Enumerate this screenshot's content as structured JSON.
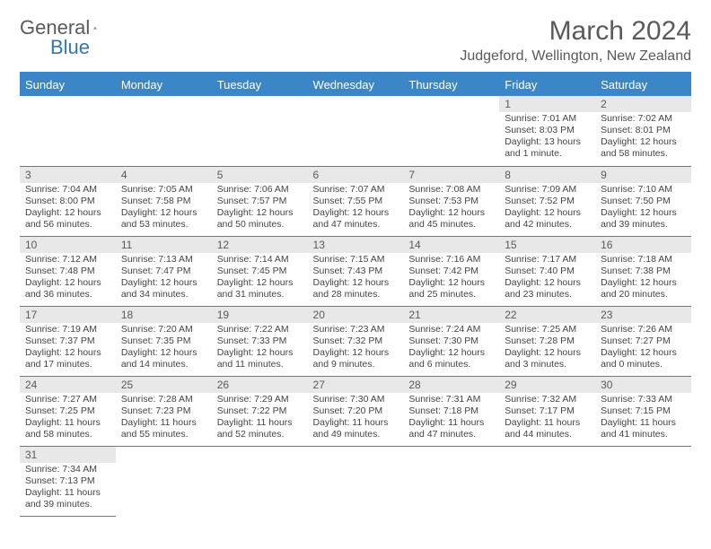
{
  "brand": {
    "word1": "General",
    "word2": "Blue"
  },
  "title": "March 2024",
  "location": "Judgeford, Wellington, New Zealand",
  "day_headers": [
    "Sunday",
    "Monday",
    "Tuesday",
    "Wednesday",
    "Thursday",
    "Friday",
    "Saturday"
  ],
  "colors": {
    "header_bg": "#3b86c6",
    "header_text": "#ffffff",
    "daynum_bg": "#e8e8e8",
    "border": "#3b86c6",
    "title_color": "#5a5a5a"
  },
  "weeks": [
    [
      null,
      null,
      null,
      null,
      null,
      {
        "n": "1",
        "sr": "Sunrise: 7:01 AM",
        "ss": "Sunset: 8:03 PM",
        "dl1": "Daylight: 13 hours",
        "dl2": "and 1 minute."
      },
      {
        "n": "2",
        "sr": "Sunrise: 7:02 AM",
        "ss": "Sunset: 8:01 PM",
        "dl1": "Daylight: 12 hours",
        "dl2": "and 58 minutes."
      }
    ],
    [
      {
        "n": "3",
        "sr": "Sunrise: 7:04 AM",
        "ss": "Sunset: 8:00 PM",
        "dl1": "Daylight: 12 hours",
        "dl2": "and 56 minutes."
      },
      {
        "n": "4",
        "sr": "Sunrise: 7:05 AM",
        "ss": "Sunset: 7:58 PM",
        "dl1": "Daylight: 12 hours",
        "dl2": "and 53 minutes."
      },
      {
        "n": "5",
        "sr": "Sunrise: 7:06 AM",
        "ss": "Sunset: 7:57 PM",
        "dl1": "Daylight: 12 hours",
        "dl2": "and 50 minutes."
      },
      {
        "n": "6",
        "sr": "Sunrise: 7:07 AM",
        "ss": "Sunset: 7:55 PM",
        "dl1": "Daylight: 12 hours",
        "dl2": "and 47 minutes."
      },
      {
        "n": "7",
        "sr": "Sunrise: 7:08 AM",
        "ss": "Sunset: 7:53 PM",
        "dl1": "Daylight: 12 hours",
        "dl2": "and 45 minutes."
      },
      {
        "n": "8",
        "sr": "Sunrise: 7:09 AM",
        "ss": "Sunset: 7:52 PM",
        "dl1": "Daylight: 12 hours",
        "dl2": "and 42 minutes."
      },
      {
        "n": "9",
        "sr": "Sunrise: 7:10 AM",
        "ss": "Sunset: 7:50 PM",
        "dl1": "Daylight: 12 hours",
        "dl2": "and 39 minutes."
      }
    ],
    [
      {
        "n": "10",
        "sr": "Sunrise: 7:12 AM",
        "ss": "Sunset: 7:48 PM",
        "dl1": "Daylight: 12 hours",
        "dl2": "and 36 minutes."
      },
      {
        "n": "11",
        "sr": "Sunrise: 7:13 AM",
        "ss": "Sunset: 7:47 PM",
        "dl1": "Daylight: 12 hours",
        "dl2": "and 34 minutes."
      },
      {
        "n": "12",
        "sr": "Sunrise: 7:14 AM",
        "ss": "Sunset: 7:45 PM",
        "dl1": "Daylight: 12 hours",
        "dl2": "and 31 minutes."
      },
      {
        "n": "13",
        "sr": "Sunrise: 7:15 AM",
        "ss": "Sunset: 7:43 PM",
        "dl1": "Daylight: 12 hours",
        "dl2": "and 28 minutes."
      },
      {
        "n": "14",
        "sr": "Sunrise: 7:16 AM",
        "ss": "Sunset: 7:42 PM",
        "dl1": "Daylight: 12 hours",
        "dl2": "and 25 minutes."
      },
      {
        "n": "15",
        "sr": "Sunrise: 7:17 AM",
        "ss": "Sunset: 7:40 PM",
        "dl1": "Daylight: 12 hours",
        "dl2": "and 23 minutes."
      },
      {
        "n": "16",
        "sr": "Sunrise: 7:18 AM",
        "ss": "Sunset: 7:38 PM",
        "dl1": "Daylight: 12 hours",
        "dl2": "and 20 minutes."
      }
    ],
    [
      {
        "n": "17",
        "sr": "Sunrise: 7:19 AM",
        "ss": "Sunset: 7:37 PM",
        "dl1": "Daylight: 12 hours",
        "dl2": "and 17 minutes."
      },
      {
        "n": "18",
        "sr": "Sunrise: 7:20 AM",
        "ss": "Sunset: 7:35 PM",
        "dl1": "Daylight: 12 hours",
        "dl2": "and 14 minutes."
      },
      {
        "n": "19",
        "sr": "Sunrise: 7:22 AM",
        "ss": "Sunset: 7:33 PM",
        "dl1": "Daylight: 12 hours",
        "dl2": "and 11 minutes."
      },
      {
        "n": "20",
        "sr": "Sunrise: 7:23 AM",
        "ss": "Sunset: 7:32 PM",
        "dl1": "Daylight: 12 hours",
        "dl2": "and 9 minutes."
      },
      {
        "n": "21",
        "sr": "Sunrise: 7:24 AM",
        "ss": "Sunset: 7:30 PM",
        "dl1": "Daylight: 12 hours",
        "dl2": "and 6 minutes."
      },
      {
        "n": "22",
        "sr": "Sunrise: 7:25 AM",
        "ss": "Sunset: 7:28 PM",
        "dl1": "Daylight: 12 hours",
        "dl2": "and 3 minutes."
      },
      {
        "n": "23",
        "sr": "Sunrise: 7:26 AM",
        "ss": "Sunset: 7:27 PM",
        "dl1": "Daylight: 12 hours",
        "dl2": "and 0 minutes."
      }
    ],
    [
      {
        "n": "24",
        "sr": "Sunrise: 7:27 AM",
        "ss": "Sunset: 7:25 PM",
        "dl1": "Daylight: 11 hours",
        "dl2": "and 58 minutes."
      },
      {
        "n": "25",
        "sr": "Sunrise: 7:28 AM",
        "ss": "Sunset: 7:23 PM",
        "dl1": "Daylight: 11 hours",
        "dl2": "and 55 minutes."
      },
      {
        "n": "26",
        "sr": "Sunrise: 7:29 AM",
        "ss": "Sunset: 7:22 PM",
        "dl1": "Daylight: 11 hours",
        "dl2": "and 52 minutes."
      },
      {
        "n": "27",
        "sr": "Sunrise: 7:30 AM",
        "ss": "Sunset: 7:20 PM",
        "dl1": "Daylight: 11 hours",
        "dl2": "and 49 minutes."
      },
      {
        "n": "28",
        "sr": "Sunrise: 7:31 AM",
        "ss": "Sunset: 7:18 PM",
        "dl1": "Daylight: 11 hours",
        "dl2": "and 47 minutes."
      },
      {
        "n": "29",
        "sr": "Sunrise: 7:32 AM",
        "ss": "Sunset: 7:17 PM",
        "dl1": "Daylight: 11 hours",
        "dl2": "and 44 minutes."
      },
      {
        "n": "30",
        "sr": "Sunrise: 7:33 AM",
        "ss": "Sunset: 7:15 PM",
        "dl1": "Daylight: 11 hours",
        "dl2": "and 41 minutes."
      }
    ],
    [
      {
        "n": "31",
        "sr": "Sunrise: 7:34 AM",
        "ss": "Sunset: 7:13 PM",
        "dl1": "Daylight: 11 hours",
        "dl2": "and 39 minutes."
      },
      null,
      null,
      null,
      null,
      null,
      null
    ]
  ]
}
